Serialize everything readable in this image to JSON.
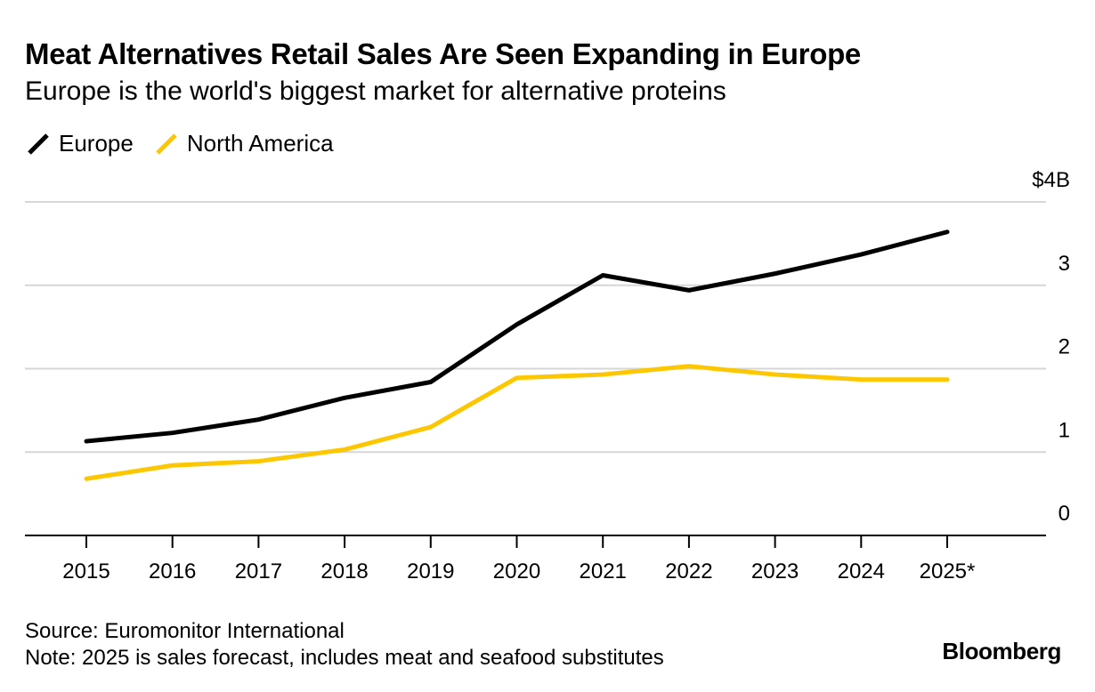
{
  "chart_data": {
    "type": "line",
    "title": "Meat Alternatives Retail Sales Are Seen Expanding in Europe",
    "subtitle": "Europe is the world's biggest market for alternative proteins",
    "categories": [
      "2015",
      "2016",
      "2017",
      "2018",
      "2019",
      "2020",
      "2021",
      "2022",
      "2023",
      "2024",
      "2025*"
    ],
    "series": [
      {
        "name": "Europe",
        "color": "#000000",
        "values": [
          1.13,
          1.23,
          1.39,
          1.65,
          1.84,
          2.53,
          3.12,
          2.94,
          3.14,
          3.37,
          3.64
        ]
      },
      {
        "name": "North America",
        "color": "#fdc700",
        "values": [
          0.68,
          0.84,
          0.89,
          1.03,
          1.3,
          1.89,
          1.93,
          2.03,
          1.93,
          1.87,
          1.87
        ]
      }
    ],
    "y_ticks": [
      "0",
      "1",
      "2",
      "3",
      "$4B"
    ],
    "y_tick_values": [
      0,
      1,
      2,
      3,
      4
    ],
    "ylim": [
      0,
      4
    ],
    "y_axis_position": "right",
    "grid": true,
    "legend": "top-left"
  },
  "footer": {
    "source": "Source: Euromonitor International",
    "note": "Note: 2025 is sales forecast, includes meat and seafood substitutes",
    "brand": "Bloomberg"
  }
}
